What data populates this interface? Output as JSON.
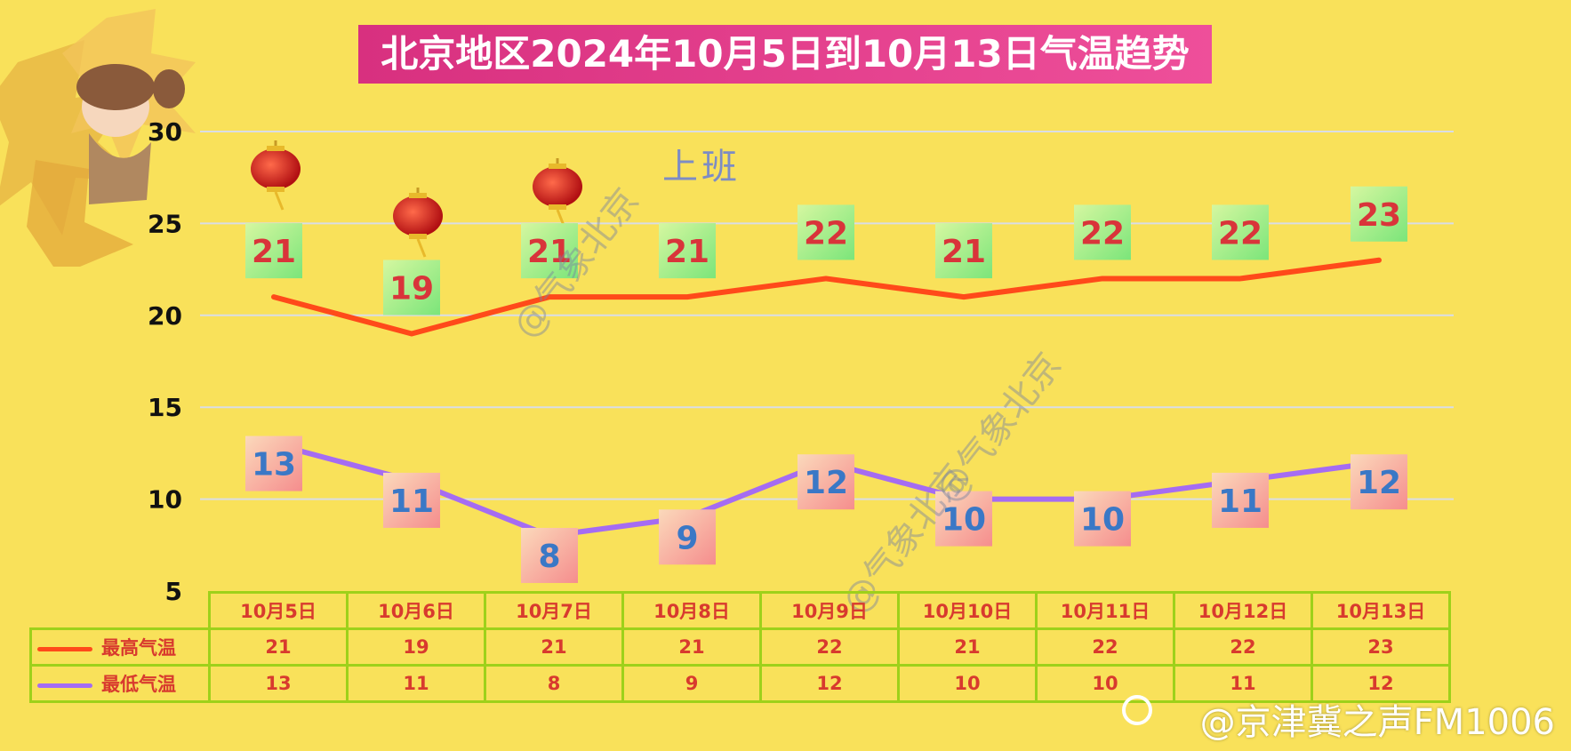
{
  "title": "北京地区2024年10月5日到10月13日气温趋势",
  "stamp": "上班",
  "watermarks": [
    "@气象北京",
    "@气象北京",
    "@气象北京"
  ],
  "credit": "@京津冀之声FM1006",
  "colors": {
    "high": "#ff4a1a",
    "low": "#a56cf2",
    "background": "#f9e15a",
    "title_bg": "#e0418b",
    "grid": "#d9dde6"
  },
  "chart_data": {
    "type": "line",
    "title": "北京地区2024年10月5日到10月13日气温趋势",
    "categories": [
      "10月5日",
      "10月6日",
      "10月7日",
      "10月8日",
      "10月9日",
      "10月10日",
      "10月11日",
      "10月12日",
      "10月13日"
    ],
    "yticks": [
      "5",
      "10",
      "15",
      "20",
      "25",
      "30"
    ],
    "ylim": [
      5,
      30
    ],
    "grid": true,
    "series": [
      {
        "name": "最高气温",
        "values": [
          21,
          19,
          21,
          21,
          22,
          21,
          22,
          22,
          23
        ]
      },
      {
        "name": "最低气温",
        "values": [
          13,
          11,
          8,
          9,
          12,
          10,
          10,
          11,
          12
        ]
      }
    ]
  }
}
